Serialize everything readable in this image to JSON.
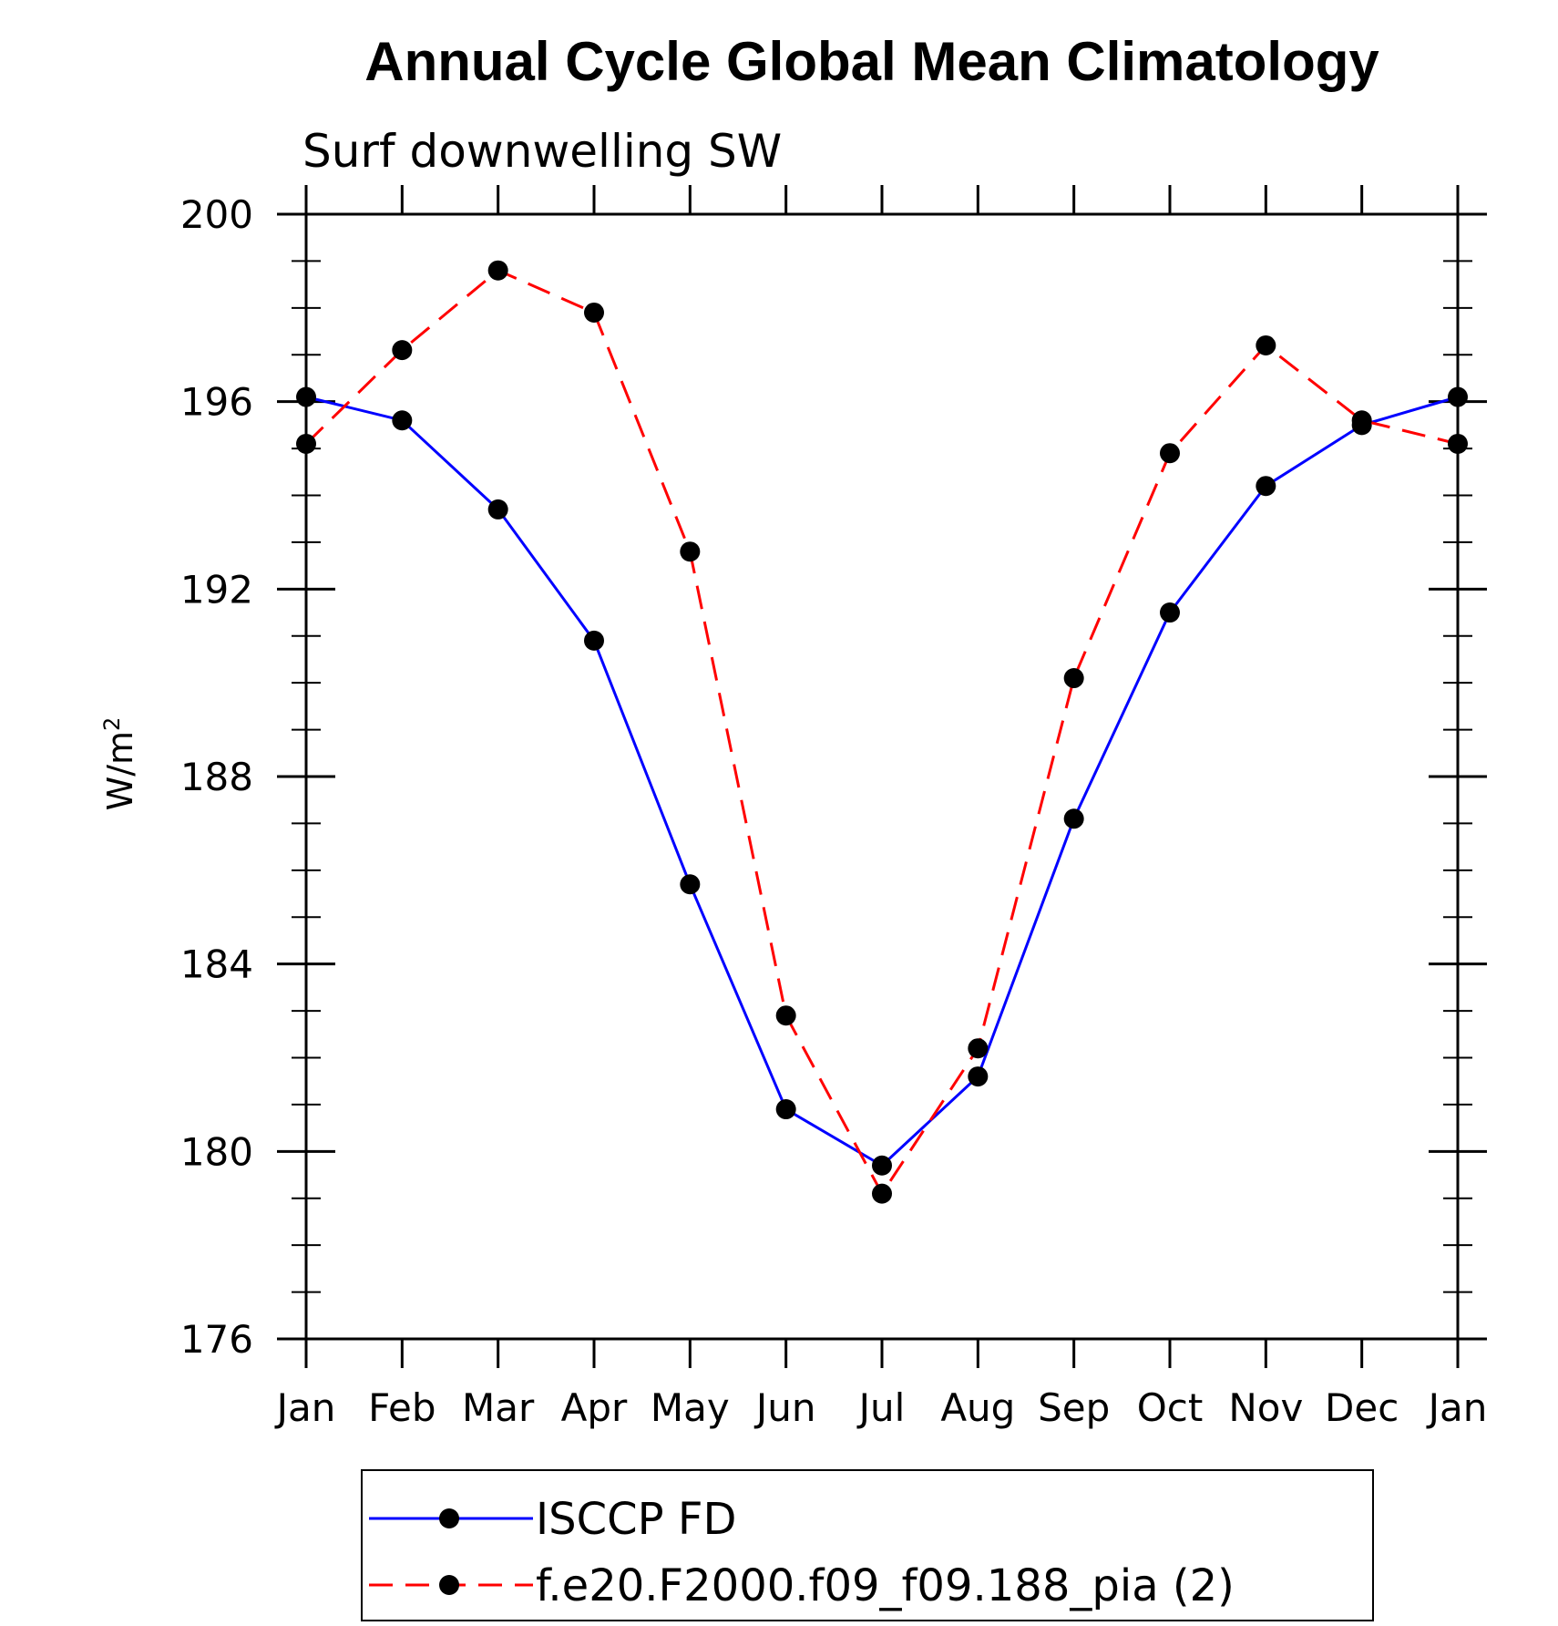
{
  "chart_data": {
    "type": "line",
    "title": "Annual Cycle Global Mean Climatology",
    "subtitle": "Surf downwelling SW",
    "ylabel": "W/m",
    "ylabel_sup": "2",
    "ylim": [
      176,
      200
    ],
    "yticks": [
      176,
      180,
      184,
      188,
      192,
      196,
      200
    ],
    "categories": [
      "Jan",
      "Feb",
      "Mar",
      "Apr",
      "May",
      "Jun",
      "Jul",
      "Aug",
      "Sep",
      "Oct",
      "Nov",
      "Dec",
      "Jan"
    ],
    "grid": false,
    "legend_position": "bottom",
    "series": [
      {
        "name": "ISCCP FD",
        "color": "#0000ff",
        "dash": "solid",
        "marker": "filled-circle",
        "values": [
          196.1,
          195.6,
          193.7,
          190.9,
          185.7,
          180.9,
          179.7,
          181.6,
          187.1,
          191.5,
          194.2,
          195.5,
          196.1
        ]
      },
      {
        "name": "f.e20.F2000.f09_f09.188_pia (2)",
        "color": "#ff0000",
        "dash": "dashed",
        "marker": "filled-circle",
        "values": [
          195.1,
          197.1,
          198.8,
          197.9,
          192.8,
          182.9,
          179.1,
          182.2,
          190.1,
          194.9,
          197.2,
          195.6,
          195.1
        ]
      }
    ]
  }
}
